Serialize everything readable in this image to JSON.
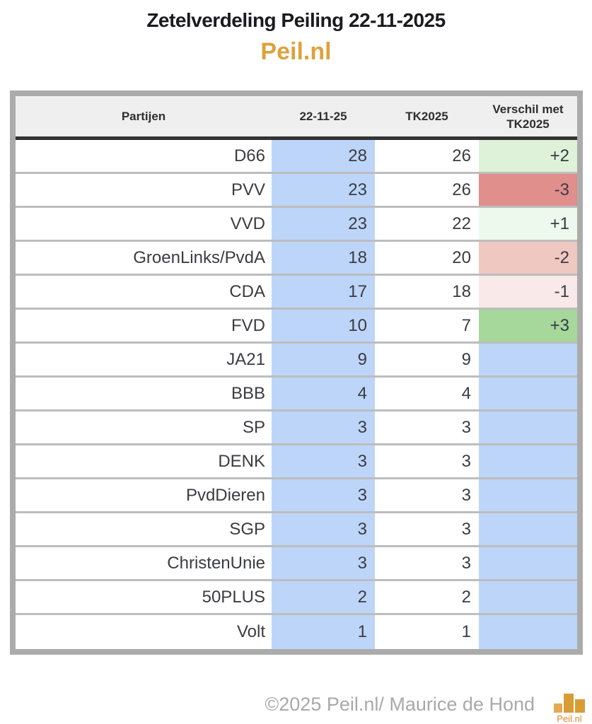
{
  "header": {
    "title": "Zetelverdeling Peiling 22-11-2025",
    "subtitle": "Peil.nl"
  },
  "table": {
    "columns": {
      "party": "Partijen",
      "date": "22-11-25",
      "tk": "TK2025",
      "diff": "Verschil met TK2025"
    },
    "colors": {
      "seats_bg": "#bdd5f8",
      "header_bg": "#efefef",
      "frame": "#ababab",
      "accent_orange": "#dda23e"
    },
    "rows": [
      {
        "party": "D66",
        "seats": "28",
        "tk": "26",
        "diff": "+2",
        "diff_color": "#def2da"
      },
      {
        "party": "PVV",
        "seats": "23",
        "tk": "26",
        "diff": "-3",
        "diff_color": "#e08f8c"
      },
      {
        "party": "VVD",
        "seats": "23",
        "tk": "22",
        "diff": "+1",
        "diff_color": "#edf9ed"
      },
      {
        "party": "GroenLinks/PvdA",
        "seats": "18",
        "tk": "20",
        "diff": "-2",
        "diff_color": "#f0c8c2"
      },
      {
        "party": "CDA",
        "seats": "17",
        "tk": "18",
        "diff": "-1",
        "diff_color": "#f9e9e9"
      },
      {
        "party": "FVD",
        "seats": "10",
        "tk": "7",
        "diff": "+3",
        "diff_color": "#a6d79b"
      },
      {
        "party": "JA21",
        "seats": "9",
        "tk": "9",
        "diff": "",
        "diff_color": "#bdd5f8"
      },
      {
        "party": "BBB",
        "seats": "4",
        "tk": "4",
        "diff": "",
        "diff_color": "#bdd5f8"
      },
      {
        "party": "SP",
        "seats": "3",
        "tk": "3",
        "diff": "",
        "diff_color": "#bdd5f8"
      },
      {
        "party": "DENK",
        "seats": "3",
        "tk": "3",
        "diff": "",
        "diff_color": "#bdd5f8"
      },
      {
        "party": "PvdDieren",
        "seats": "3",
        "tk": "3",
        "diff": "",
        "diff_color": "#bdd5f8"
      },
      {
        "party": "SGP",
        "seats": "3",
        "tk": "3",
        "diff": "",
        "diff_color": "#bdd5f8"
      },
      {
        "party": "ChristenUnie",
        "seats": "3",
        "tk": "3",
        "diff": "",
        "diff_color": "#bdd5f8"
      },
      {
        "party": "50PLUS",
        "seats": "2",
        "tk": "2",
        "diff": "",
        "diff_color": "#bdd5f8"
      },
      {
        "party": "Volt",
        "seats": "1",
        "tk": "1",
        "diff": "",
        "diff_color": "#bdd5f8"
      }
    ]
  },
  "footer": {
    "copyright": "©2025 Peil.nl/ Maurice de Hond",
    "logo_text": "Peil.nl"
  },
  "chart_data": {
    "type": "table",
    "title": "Zetelverdeling Peiling 22-11-2025",
    "subtitle": "Peil.nl",
    "columns": [
      "Partijen",
      "22-11-25",
      "TK2025",
      "Verschil met TK2025"
    ],
    "categories": [
      "D66",
      "PVV",
      "VVD",
      "GroenLinks/PvdA",
      "CDA",
      "FVD",
      "JA21",
      "BBB",
      "SP",
      "DENK",
      "PvdDieren",
      "SGP",
      "ChristenUnie",
      "50PLUS",
      "Volt"
    ],
    "series": [
      {
        "name": "22-11-25",
        "values": [
          28,
          23,
          23,
          18,
          17,
          10,
          9,
          4,
          3,
          3,
          3,
          3,
          3,
          2,
          1
        ]
      },
      {
        "name": "TK2025",
        "values": [
          26,
          26,
          22,
          20,
          18,
          7,
          9,
          4,
          3,
          3,
          3,
          3,
          3,
          2,
          1
        ]
      },
      {
        "name": "Verschil met TK2025",
        "values": [
          2,
          -3,
          1,
          -2,
          -1,
          3,
          null,
          null,
          null,
          null,
          null,
          null,
          null,
          null,
          null
        ]
      }
    ]
  }
}
